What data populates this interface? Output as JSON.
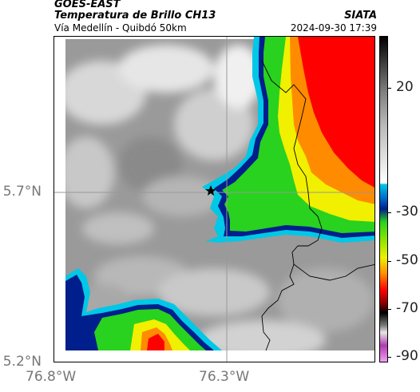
{
  "header": {
    "source": "GOES-EAST",
    "product": "Temperatura de Brillo CH13",
    "region": "Vía Medellín - Quibdó 50km",
    "organization": "SIATA",
    "timestamp": "2024-09-30 17:39"
  },
  "map": {
    "lat_ticks": [
      "5.7°N",
      "5.2°N"
    ],
    "lon_ticks": [
      "76.8°W",
      "76.3°W"
    ],
    "marker": "star-marker",
    "gridlines": true
  },
  "colorbar": {
    "ticks": [
      "20",
      "-30",
      "-50",
      "-70",
      "-90"
    ],
    "colors": {
      "warm": "#ffffff",
      "gray": "#808080",
      "cyan": "#00c8e6",
      "blue": "#001e8c",
      "green": "#28d21e",
      "yellow": "#f0f000",
      "orange": "#ff8c00",
      "red": "#ff0000",
      "dark": "#000000",
      "purple": "#b03cb0"
    }
  }
}
